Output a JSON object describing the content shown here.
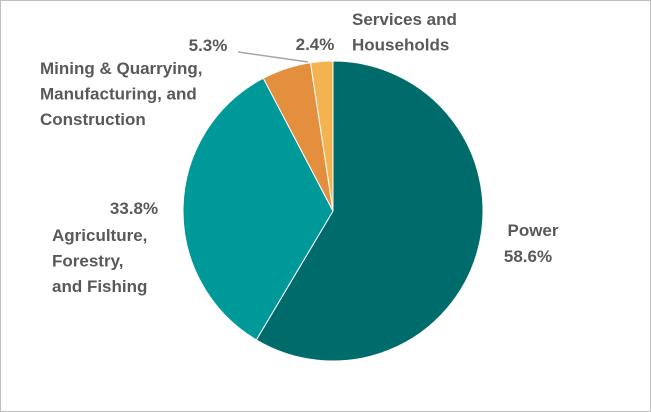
{
  "chart_data": {
    "type": "pie",
    "categories": [
      "Power",
      "Agriculture,\nForestry,\nand Fishing",
      "Mining & Quarrying,\nManufacturing, and\nConstruction",
      "Services and\nHouseholds"
    ],
    "values": [
      58.6,
      33.8,
      5.3,
      2.4
    ],
    "value_labels": [
      "58.6%",
      "33.8%",
      "5.3%",
      "2.4%"
    ],
    "colors": [
      "#006b6b",
      "#009999",
      "#e38f3e",
      "#f2b350"
    ]
  }
}
